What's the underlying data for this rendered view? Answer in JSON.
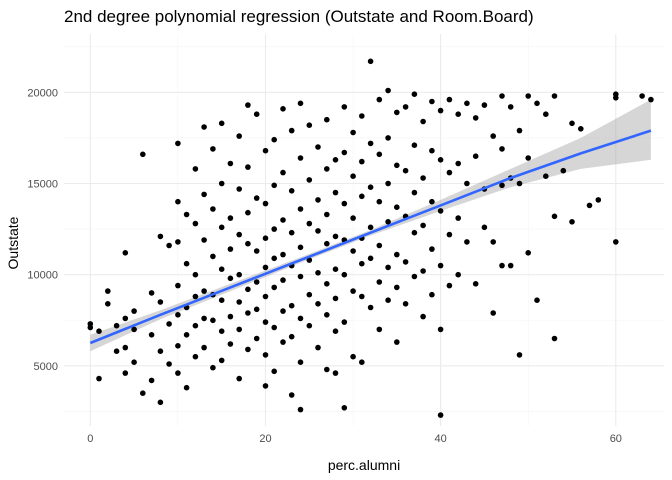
{
  "chart_data": {
    "type": "scatter",
    "title": "2nd degree polynomial regression (Outstate and Room.Board)",
    "xlabel": "perc.alumni",
    "ylabel": "Outstate",
    "xlim": [
      -3,
      65.5
    ],
    "ylim": [
      1700,
      23200
    ],
    "x_ticks": [
      0,
      20,
      40,
      60
    ],
    "y_ticks": [
      5000,
      10000,
      15000,
      20000
    ],
    "grid": true,
    "legend": "none",
    "colors": {
      "points": "#000000",
      "fit_line": "#3366FF",
      "confidence_band": "#999999",
      "grid_major": "#ebebeb",
      "grid_minor": "#f5f5f5"
    },
    "fit": {
      "x": [
        0,
        8,
        16,
        24,
        32,
        40,
        48,
        56,
        64
      ],
      "y": [
        6250,
        7800,
        9300,
        10800,
        12300,
        13800,
        15300,
        16650,
        17900
      ],
      "lower": [
        5800,
        7550,
        9100,
        10650,
        12150,
        13500,
        14800,
        15800,
        16300
      ],
      "upper": [
        6700,
        8050,
        9500,
        10950,
        12450,
        14100,
        15800,
        17500,
        19600
      ]
    },
    "points": [
      [
        0,
        7300
      ],
      [
        0,
        7100
      ],
      [
        1,
        6900
      ],
      [
        1,
        4300
      ],
      [
        2,
        8400
      ],
      [
        2,
        9100
      ],
      [
        3,
        7200
      ],
      [
        3,
        5800
      ],
      [
        4,
        11200
      ],
      [
        4,
        7600
      ],
      [
        4,
        6000
      ],
      [
        4,
        4600
      ],
      [
        5,
        8000
      ],
      [
        5,
        7000
      ],
      [
        5,
        5200
      ],
      [
        6,
        3500
      ],
      [
        6,
        16600
      ],
      [
        7,
        9000
      ],
      [
        7,
        6700
      ],
      [
        7,
        4200
      ],
      [
        8,
        12100
      ],
      [
        8,
        8500
      ],
      [
        8,
        5800
      ],
      [
        8,
        3000
      ],
      [
        9,
        11600
      ],
      [
        9,
        7300
      ],
      [
        9,
        5100
      ],
      [
        10,
        17200
      ],
      [
        10,
        14000
      ],
      [
        10,
        11800
      ],
      [
        10,
        9400
      ],
      [
        10,
        7800
      ],
      [
        10,
        6100
      ],
      [
        10,
        4600
      ],
      [
        11,
        13300
      ],
      [
        11,
        10600
      ],
      [
        11,
        8200
      ],
      [
        11,
        6700
      ],
      [
        11,
        3800
      ],
      [
        12,
        15800
      ],
      [
        12,
        12800
      ],
      [
        12,
        10000
      ],
      [
        12,
        8800
      ],
      [
        12,
        7200
      ],
      [
        12,
        5500
      ],
      [
        13,
        18100
      ],
      [
        13,
        14400
      ],
      [
        13,
        11900
      ],
      [
        13,
        9100
      ],
      [
        13,
        7600
      ],
      [
        13,
        6000
      ],
      [
        14,
        16900
      ],
      [
        14,
        13600
      ],
      [
        14,
        11000
      ],
      [
        14,
        8900
      ],
      [
        14,
        7500
      ],
      [
        14,
        4900
      ],
      [
        15,
        18300
      ],
      [
        15,
        15000
      ],
      [
        15,
        12600
      ],
      [
        15,
        10300
      ],
      [
        15,
        8600
      ],
      [
        15,
        6900
      ],
      [
        15,
        5300
      ],
      [
        16,
        16100
      ],
      [
        16,
        13100
      ],
      [
        16,
        11400
      ],
      [
        16,
        9800
      ],
      [
        16,
        7700
      ],
      [
        16,
        6200
      ],
      [
        17,
        17600
      ],
      [
        17,
        14700
      ],
      [
        17,
        12200
      ],
      [
        17,
        10000
      ],
      [
        17,
        8500
      ],
      [
        17,
        7000
      ],
      [
        17,
        4300
      ],
      [
        18,
        19300
      ],
      [
        18,
        15900
      ],
      [
        18,
        13400
      ],
      [
        18,
        11700
      ],
      [
        18,
        9200
      ],
      [
        18,
        7900
      ],
      [
        18,
        5900
      ],
      [
        19,
        18800
      ],
      [
        19,
        14200
      ],
      [
        19,
        11300
      ],
      [
        19,
        9600
      ],
      [
        19,
        8100
      ],
      [
        19,
        6500
      ],
      [
        20,
        16800
      ],
      [
        20,
        13900
      ],
      [
        20,
        12000
      ],
      [
        20,
        10400
      ],
      [
        20,
        8800
      ],
      [
        20,
        7400
      ],
      [
        20,
        5600
      ],
      [
        20,
        3900
      ],
      [
        21,
        17400
      ],
      [
        21,
        14900
      ],
      [
        21,
        12500
      ],
      [
        21,
        10900
      ],
      [
        21,
        9300
      ],
      [
        21,
        7100
      ],
      [
        21,
        4700
      ],
      [
        22,
        19100
      ],
      [
        22,
        15600
      ],
      [
        22,
        13000
      ],
      [
        22,
        11100
      ],
      [
        22,
        9700
      ],
      [
        22,
        8000
      ],
      [
        22,
        6300
      ],
      [
        23,
        17900
      ],
      [
        23,
        14600
      ],
      [
        23,
        12300
      ],
      [
        23,
        10500
      ],
      [
        23,
        8300
      ],
      [
        23,
        6600
      ],
      [
        23,
        3400
      ],
      [
        24,
        19400
      ],
      [
        24,
        16400
      ],
      [
        24,
        13600
      ],
      [
        24,
        11500
      ],
      [
        24,
        9900
      ],
      [
        24,
        7600
      ],
      [
        24,
        5200
      ],
      [
        24,
        2600
      ],
      [
        25,
        18200
      ],
      [
        25,
        15200
      ],
      [
        25,
        12800
      ],
      [
        25,
        10800
      ],
      [
        25,
        8900
      ],
      [
        25,
        7200
      ],
      [
        26,
        17000
      ],
      [
        26,
        14100
      ],
      [
        26,
        12400
      ],
      [
        26,
        10100
      ],
      [
        26,
        8400
      ],
      [
        26,
        6000
      ],
      [
        27,
        18500
      ],
      [
        27,
        15800
      ],
      [
        27,
        13300
      ],
      [
        27,
        11700
      ],
      [
        27,
        9500
      ],
      [
        27,
        7800
      ],
      [
        27,
        4800
      ],
      [
        28,
        16300
      ],
      [
        28,
        14500
      ],
      [
        28,
        12100
      ],
      [
        28,
        10300
      ],
      [
        28,
        8700
      ],
      [
        28,
        6900
      ],
      [
        28,
        4600
      ],
      [
        29,
        19200
      ],
      [
        29,
        16700
      ],
      [
        29,
        13900
      ],
      [
        29,
        11900
      ],
      [
        29,
        10000
      ],
      [
        29,
        7400
      ],
      [
        29,
        2700
      ],
      [
        30,
        17800
      ],
      [
        30,
        15400
      ],
      [
        30,
        13100
      ],
      [
        30,
        11300
      ],
      [
        30,
        9100
      ],
      [
        30,
        5500
      ],
      [
        31,
        18700
      ],
      [
        31,
        16200
      ],
      [
        31,
        14300
      ],
      [
        31,
        12000
      ],
      [
        31,
        10600
      ],
      [
        31,
        8800
      ],
      [
        31,
        5200
      ],
      [
        32,
        21700
      ],
      [
        32,
        17200
      ],
      [
        32,
        14800
      ],
      [
        32,
        12600
      ],
      [
        32,
        10900
      ],
      [
        32,
        8200
      ],
      [
        33,
        19600
      ],
      [
        33,
        16600
      ],
      [
        33,
        14000
      ],
      [
        33,
        11600
      ],
      [
        33,
        9600
      ],
      [
        33,
        7000
      ],
      [
        34,
        20100
      ],
      [
        34,
        17500
      ],
      [
        34,
        15000
      ],
      [
        34,
        12900
      ],
      [
        34,
        10400
      ],
      [
        34,
        8600
      ],
      [
        35,
        18900
      ],
      [
        35,
        16000
      ],
      [
        35,
        13700
      ],
      [
        35,
        11100
      ],
      [
        35,
        9300
      ],
      [
        35,
        6300
      ],
      [
        36,
        19200
      ],
      [
        36,
        15700
      ],
      [
        36,
        13200
      ],
      [
        36,
        10700
      ],
      [
        36,
        8400
      ],
      [
        37,
        19900
      ],
      [
        37,
        17100
      ],
      [
        37,
        14500
      ],
      [
        37,
        12300
      ],
      [
        37,
        9900
      ],
      [
        38,
        18400
      ],
      [
        38,
        15300
      ],
      [
        38,
        12700
      ],
      [
        38,
        10200
      ],
      [
        38,
        7700
      ],
      [
        39,
        19500
      ],
      [
        39,
        16800
      ],
      [
        39,
        14000
      ],
      [
        39,
        11400
      ],
      [
        39,
        8900
      ],
      [
        40,
        19000
      ],
      [
        40,
        16300
      ],
      [
        40,
        13500
      ],
      [
        40,
        10500
      ],
      [
        40,
        7000
      ],
      [
        40,
        2300
      ],
      [
        41,
        19600
      ],
      [
        41,
        15600
      ],
      [
        41,
        12200
      ],
      [
        41,
        9400
      ],
      [
        42,
        18800
      ],
      [
        42,
        16100
      ],
      [
        42,
        13100
      ],
      [
        42,
        10000
      ],
      [
        43,
        19400
      ],
      [
        43,
        15000
      ],
      [
        43,
        11800
      ],
      [
        44,
        18600
      ],
      [
        44,
        16500
      ],
      [
        44,
        9500
      ],
      [
        45,
        19300
      ],
      [
        45,
        14700
      ],
      [
        45,
        12600
      ],
      [
        46,
        17600
      ],
      [
        46,
        11800
      ],
      [
        46,
        7900
      ],
      [
        47,
        19800
      ],
      [
        47,
        16900
      ],
      [
        47,
        14900
      ],
      [
        47,
        10500
      ],
      [
        48,
        19200
      ],
      [
        48,
        15300
      ],
      [
        48,
        10500
      ],
      [
        49,
        17900
      ],
      [
        49,
        15000
      ],
      [
        49,
        5600
      ],
      [
        50,
        19800
      ],
      [
        50,
        16400
      ],
      [
        50,
        11200
      ],
      [
        51,
        19400
      ],
      [
        51,
        8600
      ],
      [
        52,
        18800
      ],
      [
        52,
        15400
      ],
      [
        53,
        19800
      ],
      [
        53,
        13200
      ],
      [
        53,
        6500
      ],
      [
        54,
        15700
      ],
      [
        55,
        18300
      ],
      [
        55,
        12900
      ],
      [
        56,
        18000
      ],
      [
        57,
        13800
      ],
      [
        58,
        14100
      ],
      [
        60,
        19900
      ],
      [
        60,
        19700
      ],
      [
        60,
        11800
      ],
      [
        63,
        19800
      ],
      [
        64,
        19600
      ]
    ]
  }
}
